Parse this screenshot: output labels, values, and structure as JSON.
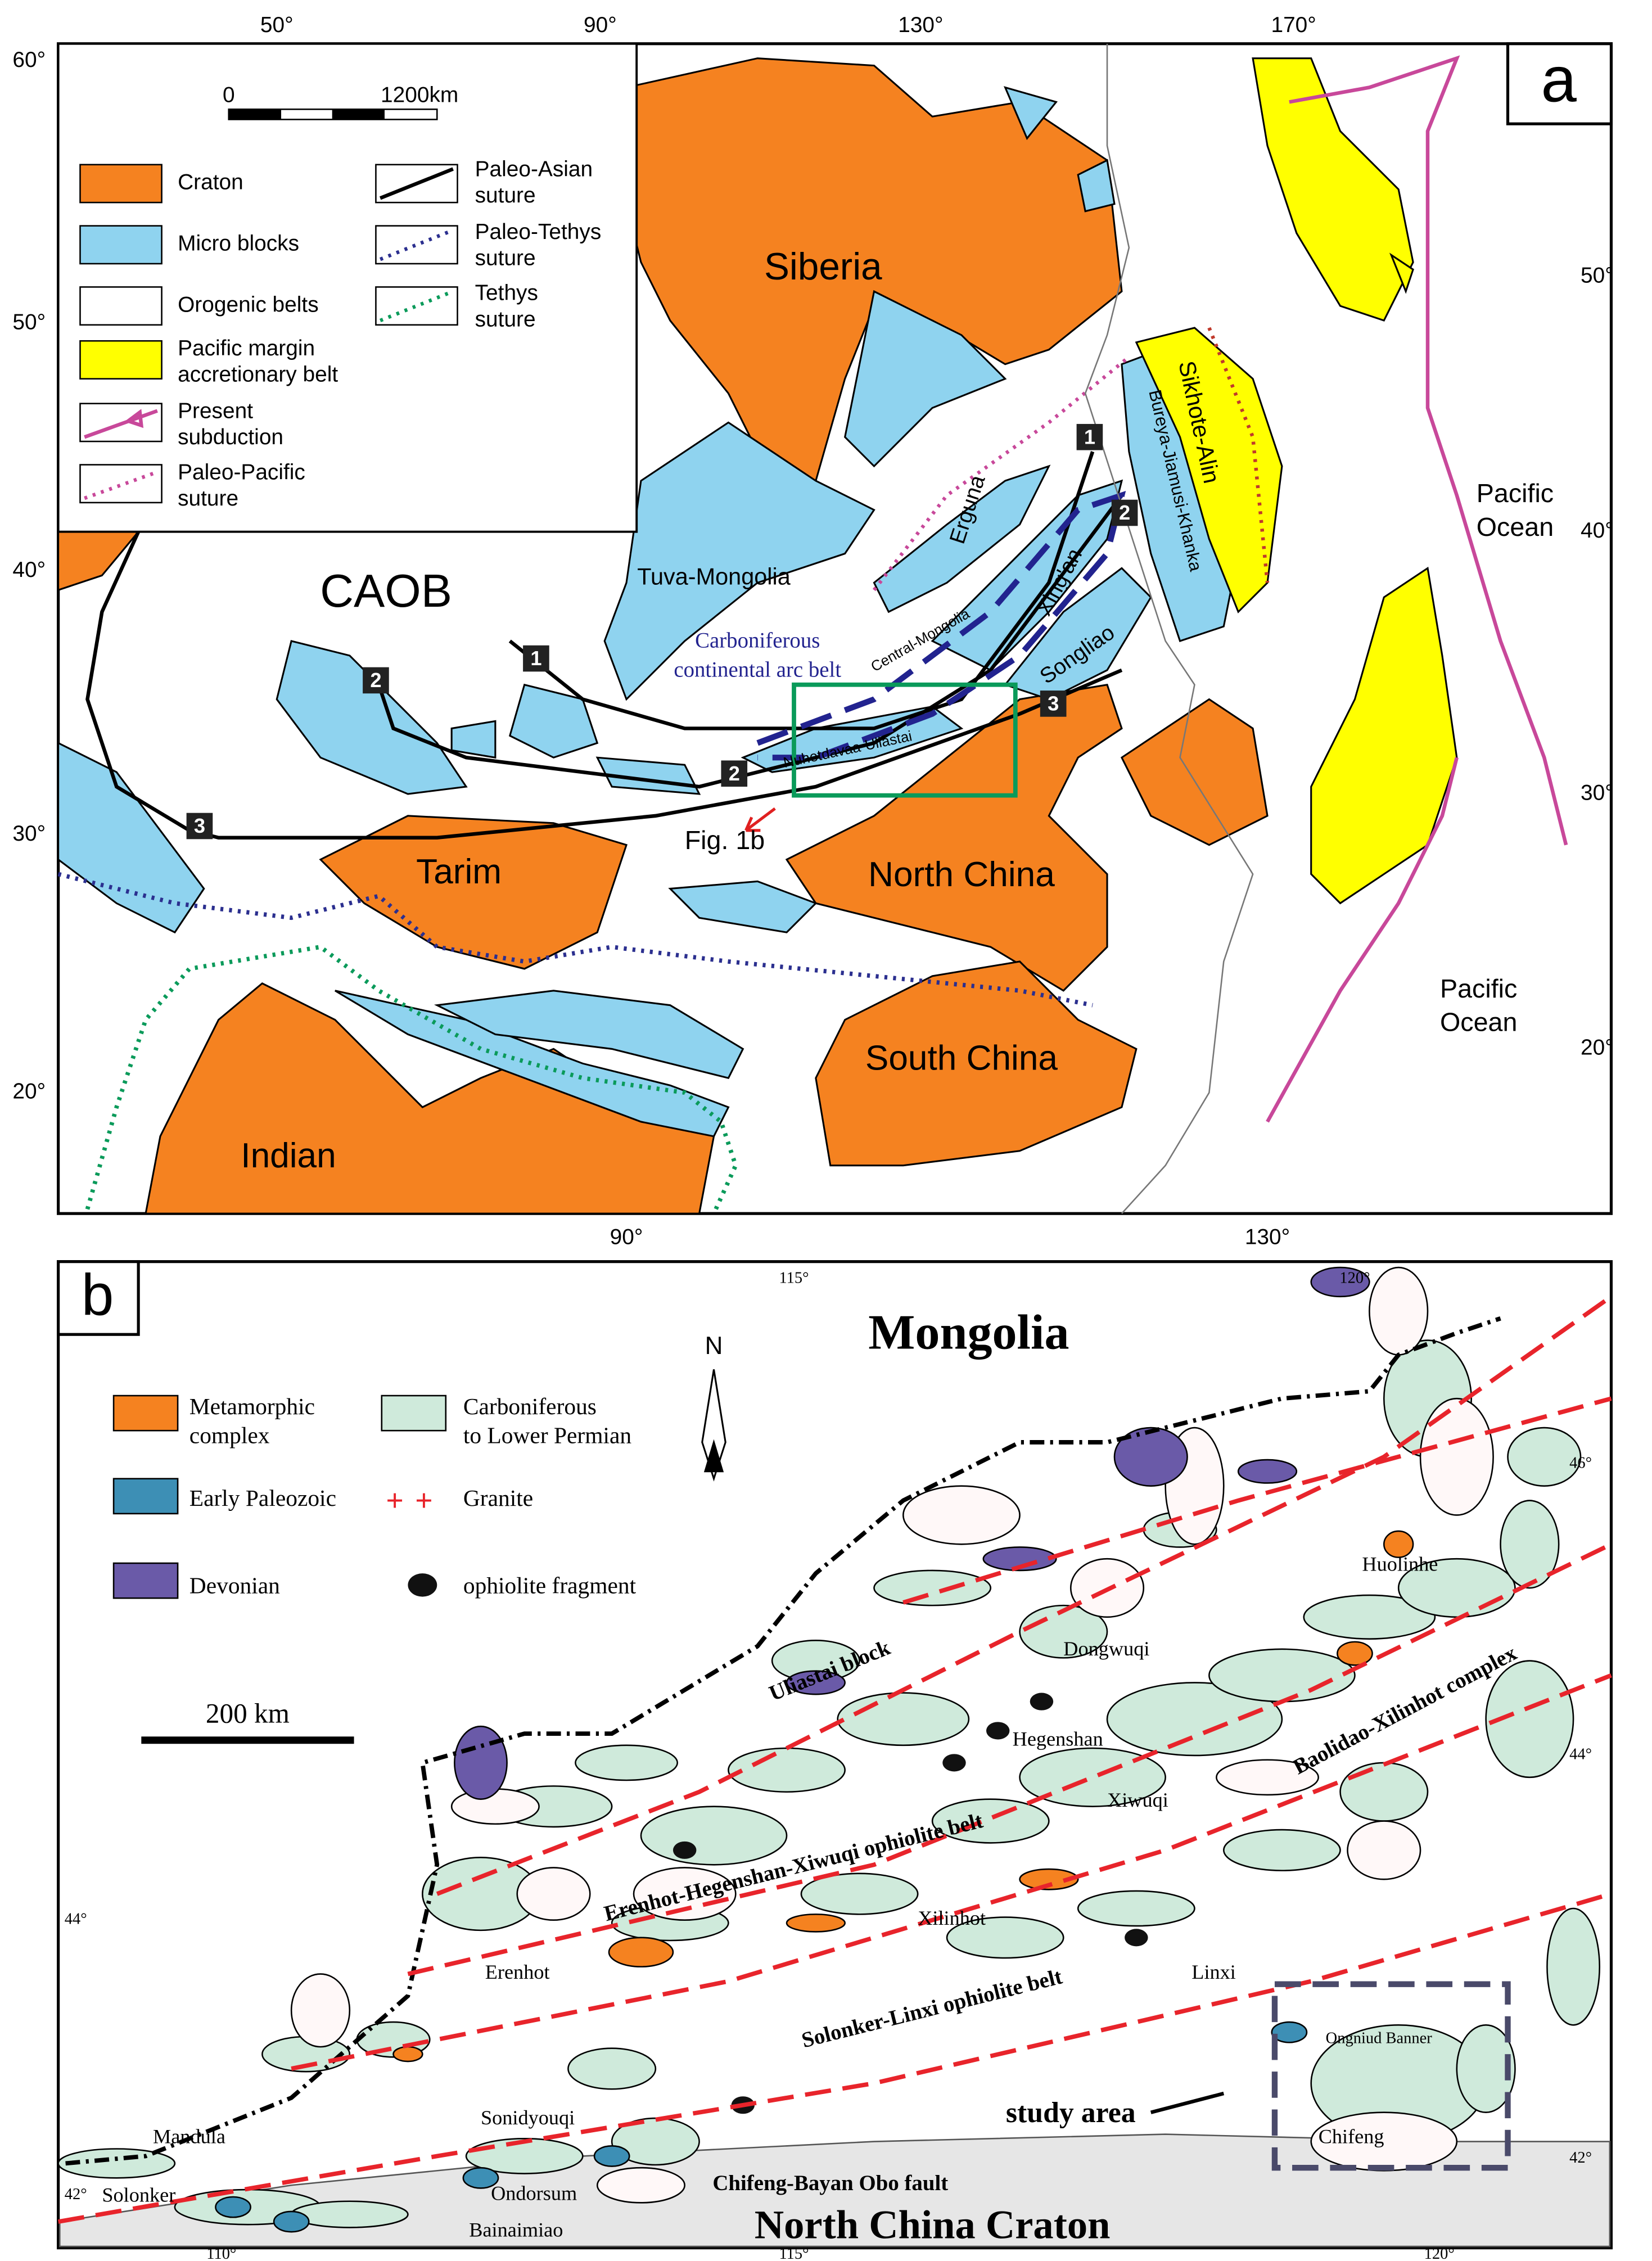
{
  "panel_a": {
    "label": "a",
    "top_longitudes": [
      "50°",
      "90°",
      "130°",
      "170°"
    ],
    "bottom_longitudes": [
      "90°",
      "130°"
    ],
    "left_latitudes": [
      "60°",
      "50°",
      "40°",
      "30°",
      "20°"
    ],
    "right_latitudes": [
      "50°",
      "40°",
      "30°",
      "20°"
    ],
    "scale_bar": {
      "start": "0",
      "end": "1200km"
    },
    "legend": [
      {
        "lines": [
          "Craton"
        ]
      },
      {
        "lines": [
          "Micro blocks"
        ]
      },
      {
        "lines": [
          "Orogenic belts"
        ]
      },
      {
        "lines": [
          "Pacific margin",
          "accretionary belt"
        ]
      },
      {
        "lines": [
          "Present",
          "subduction"
        ]
      },
      {
        "lines": [
          "Paleo-Pacific",
          "suture"
        ]
      },
      {
        "lines": [
          "Paleo-Asian",
          "suture"
        ]
      },
      {
        "lines": [
          "Paleo-Tethys",
          "suture"
        ]
      },
      {
        "lines": [
          "Tethys",
          "suture"
        ]
      }
    ],
    "places": [
      "Siberia",
      "CAOB",
      "Tuva-Mongolia",
      "Erguna",
      "Central-Mongolia",
      "Xing'an",
      "Songliao",
      "Nuhetdavaa-Uliastai",
      "Bureya-Jiamusi-Khanka",
      "Sikhote-Alin",
      "Tarim",
      "North China",
      "South China",
      "Indian"
    ],
    "arc_belt": [
      "Carboniferous",
      "continental arc belt"
    ],
    "oceans": [
      {
        "lines": [
          "Pacific",
          "Ocean"
        ]
      },
      {
        "lines": [
          "Pacific",
          "Ocean"
        ]
      }
    ],
    "suture_numbers": [
      "1",
      "1",
      "2",
      "2",
      "2",
      "3",
      "3"
    ],
    "figure_ref": "Fig. 1b"
  },
  "panel_b": {
    "label": "b",
    "top_longitudes": [
      "115°",
      "120°"
    ],
    "bottom_longitudes": [
      "110°",
      "115°",
      "120°"
    ],
    "left_latitudes": [
      "44°",
      "42°"
    ],
    "right_latitudes": [
      "46°",
      "44°",
      "42°"
    ],
    "north": "N",
    "country": "Mongolia",
    "craton": "North China Craton",
    "scale_bar": "200 km",
    "legend": [
      {
        "lines": [
          "Metamorphic",
          "complex"
        ]
      },
      {
        "lines": [
          "Carboniferous",
          "to Lower Permian"
        ]
      },
      {
        "lines": [
          "Early Paleozoic"
        ]
      },
      {
        "lines": [
          "Granite"
        ]
      },
      {
        "lines": [
          "Devonian"
        ]
      },
      {
        "lines": [
          "ophiolite fragment"
        ]
      }
    ],
    "towns": [
      "Huolinhe",
      "Dongwuqi",
      "Hegenshan",
      "Xiwuqi",
      "Xilinhot",
      "Linxi",
      "Erenhot",
      "Sonidyouqi",
      "Mandula",
      "Solonker",
      "Ondorsum",
      "Bainaimiao",
      "Chifeng",
      "Ongniud Banner"
    ],
    "belts": [
      "Uliastai block",
      "Erenhot-Hegenshan-Xiwuqi ophiolite belt",
      "Baolidao-Xilinhot complex",
      "Solonker-Linxi ophiolite belt"
    ],
    "study_area": "study area",
    "fault": "Chifeng-Bayan Obo fault"
  }
}
